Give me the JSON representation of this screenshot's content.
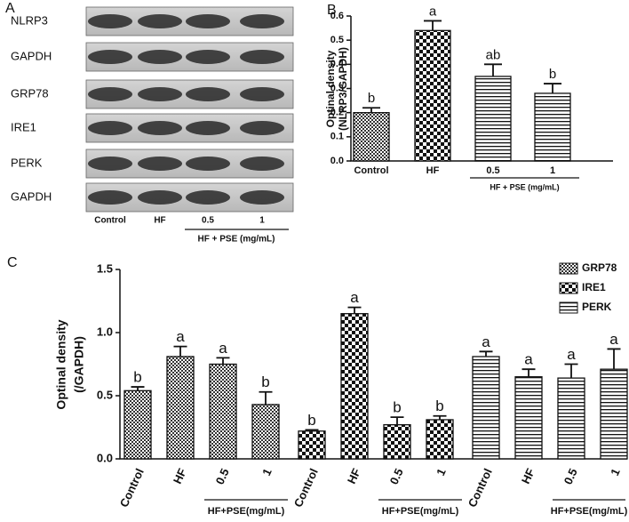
{
  "blot": {
    "panel": "A",
    "rows": [
      "NLRP3",
      "GAPDH",
      "GRP78",
      "IRE1",
      "PERK",
      "GAPDH"
    ],
    "lanes": [
      "Control",
      "HF",
      "0.5",
      "1"
    ],
    "group_label": "HF + PSE (mg/mL)"
  },
  "chart_data": [
    {
      "type": "bar",
      "panel": "B",
      "ylabel": [
        "Optinal density",
        "(NLRP3/GAPDH)"
      ],
      "categories": [
        "Control",
        "HF",
        "0.5",
        "1"
      ],
      "values": [
        0.2,
        0.54,
        0.35,
        0.28
      ],
      "errors": [
        0.02,
        0.04,
        0.05,
        0.04
      ],
      "annotations": [
        "b",
        "a",
        "ab",
        "b"
      ],
      "patterns": [
        "fine-check",
        "checker",
        "hlines",
        "hlines"
      ],
      "group_label": "HF + PSE (mg/mL)",
      "ylim": [
        0,
        0.6
      ],
      "yticks": [
        {
          "value": 0,
          "label": "0.0"
        },
        0.1,
        0.2,
        0.3,
        0.4,
        0.5,
        0.6
      ],
      "grid": false
    },
    {
      "type": "bar",
      "panel": "C",
      "ylabel": [
        "Optinal density",
        "(/GAPDH)"
      ],
      "categories": [
        "Control",
        "HF",
        "0.5",
        "1"
      ],
      "series": [
        {
          "name": "GRP78",
          "pattern": "fine-check",
          "values": [
            0.54,
            0.81,
            0.75,
            0.43
          ],
          "errors": [
            0.03,
            0.08,
            0.05,
            0.1
          ],
          "annotations": [
            "b",
            "a",
            "a",
            "b"
          ]
        },
        {
          "name": "IRE1",
          "pattern": "checker",
          "values": [
            0.22,
            1.15,
            0.27,
            0.31
          ],
          "errors": [
            0.01,
            0.05,
            0.06,
            0.03
          ],
          "annotations": [
            "b",
            "a",
            "b",
            "b"
          ]
        },
        {
          "name": "PERK",
          "pattern": "hlines",
          "values": [
            0.81,
            0.65,
            0.64,
            0.71
          ],
          "errors": [
            0.04,
            0.06,
            0.11,
            0.16
          ],
          "annotations": [
            "a",
            "a",
            "a",
            "a"
          ]
        }
      ],
      "group_label": "HF+PSE(mg/mL)",
      "ylim": [
        0,
        1.5
      ],
      "yticks": [
        {
          "value": 0,
          "label": "0.0"
        },
        0.5,
        {
          "value": 1,
          "label": "1.0"
        },
        1.5
      ],
      "legend": "upper right",
      "grid": false
    }
  ]
}
